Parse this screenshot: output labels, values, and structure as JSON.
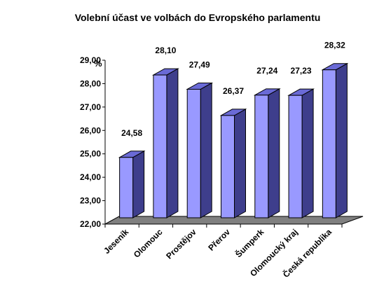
{
  "chart_data": {
    "type": "bar",
    "title": "Volební účast ve volbách do Evropského parlamentu",
    "ylabel": "%",
    "xlabel": "",
    "ylim": [
      22,
      29
    ],
    "yticks": [
      "22,00",
      "23,00",
      "24,00",
      "25,00",
      "26,00",
      "27,00",
      "28,00",
      "29,00"
    ],
    "categories": [
      "Jeseník",
      "Olomouc",
      "Prostějov",
      "Přerov",
      "Šumperk",
      "Olomoucký kraj",
      "Česká republika"
    ],
    "values": [
      24.58,
      28.1,
      27.49,
      26.37,
      27.24,
      27.23,
      28.32
    ],
    "value_labels": [
      "24,58",
      "28,10",
      "27,49",
      "26,37",
      "27,24",
      "27,23",
      "28,32"
    ],
    "grid": false,
    "legend": "none",
    "style": "3d-column",
    "colors": {
      "bar_front": "#9999ff",
      "bar_side": "#3e3e8c",
      "bar_top": "#6a6ad6",
      "floor": "#808080",
      "axis": "#000000"
    }
  }
}
